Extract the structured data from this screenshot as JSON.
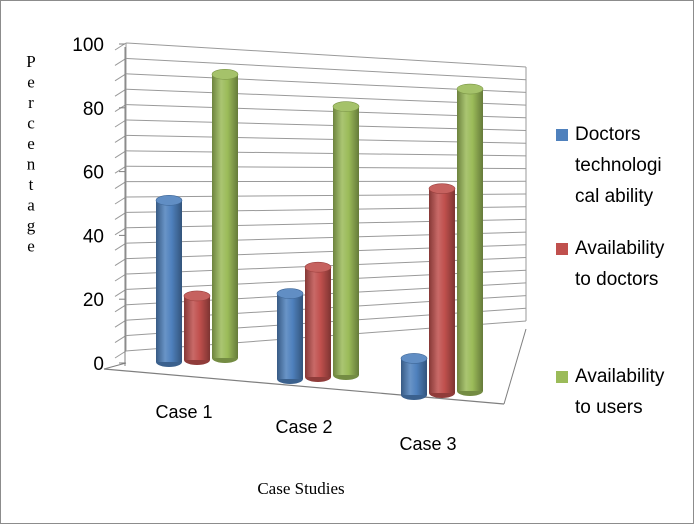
{
  "chart_data": {
    "type": "bar",
    "title": "",
    "xlabel": "Case Studies",
    "ylabel": "Percentage",
    "categories": [
      "Case 1",
      "Case 2",
      "Case 3"
    ],
    "ylim": [
      0,
      100
    ],
    "yticks": [
      "0",
      "20",
      "40",
      "60",
      "80",
      "100"
    ],
    "grid": true,
    "legend_position": "right",
    "series": [
      {
        "name": "Doctors technological ability",
        "legend_lines": [
          "Doctors",
          "technologi",
          "cal ability"
        ],
        "color": "#4f81bd",
        "values": [
          53,
          28,
          12
        ]
      },
      {
        "name": "Availability to doctors",
        "legend_lines": [
          "Availability",
          "to doctors"
        ],
        "color": "#c0504d",
        "values": [
          21,
          36,
          67
        ]
      },
      {
        "name": "Availability to users",
        "legend_lines": [
          "Availability",
          "to users"
        ],
        "color": "#9bbb59",
        "values": [
          93,
          88,
          99
        ]
      }
    ]
  }
}
